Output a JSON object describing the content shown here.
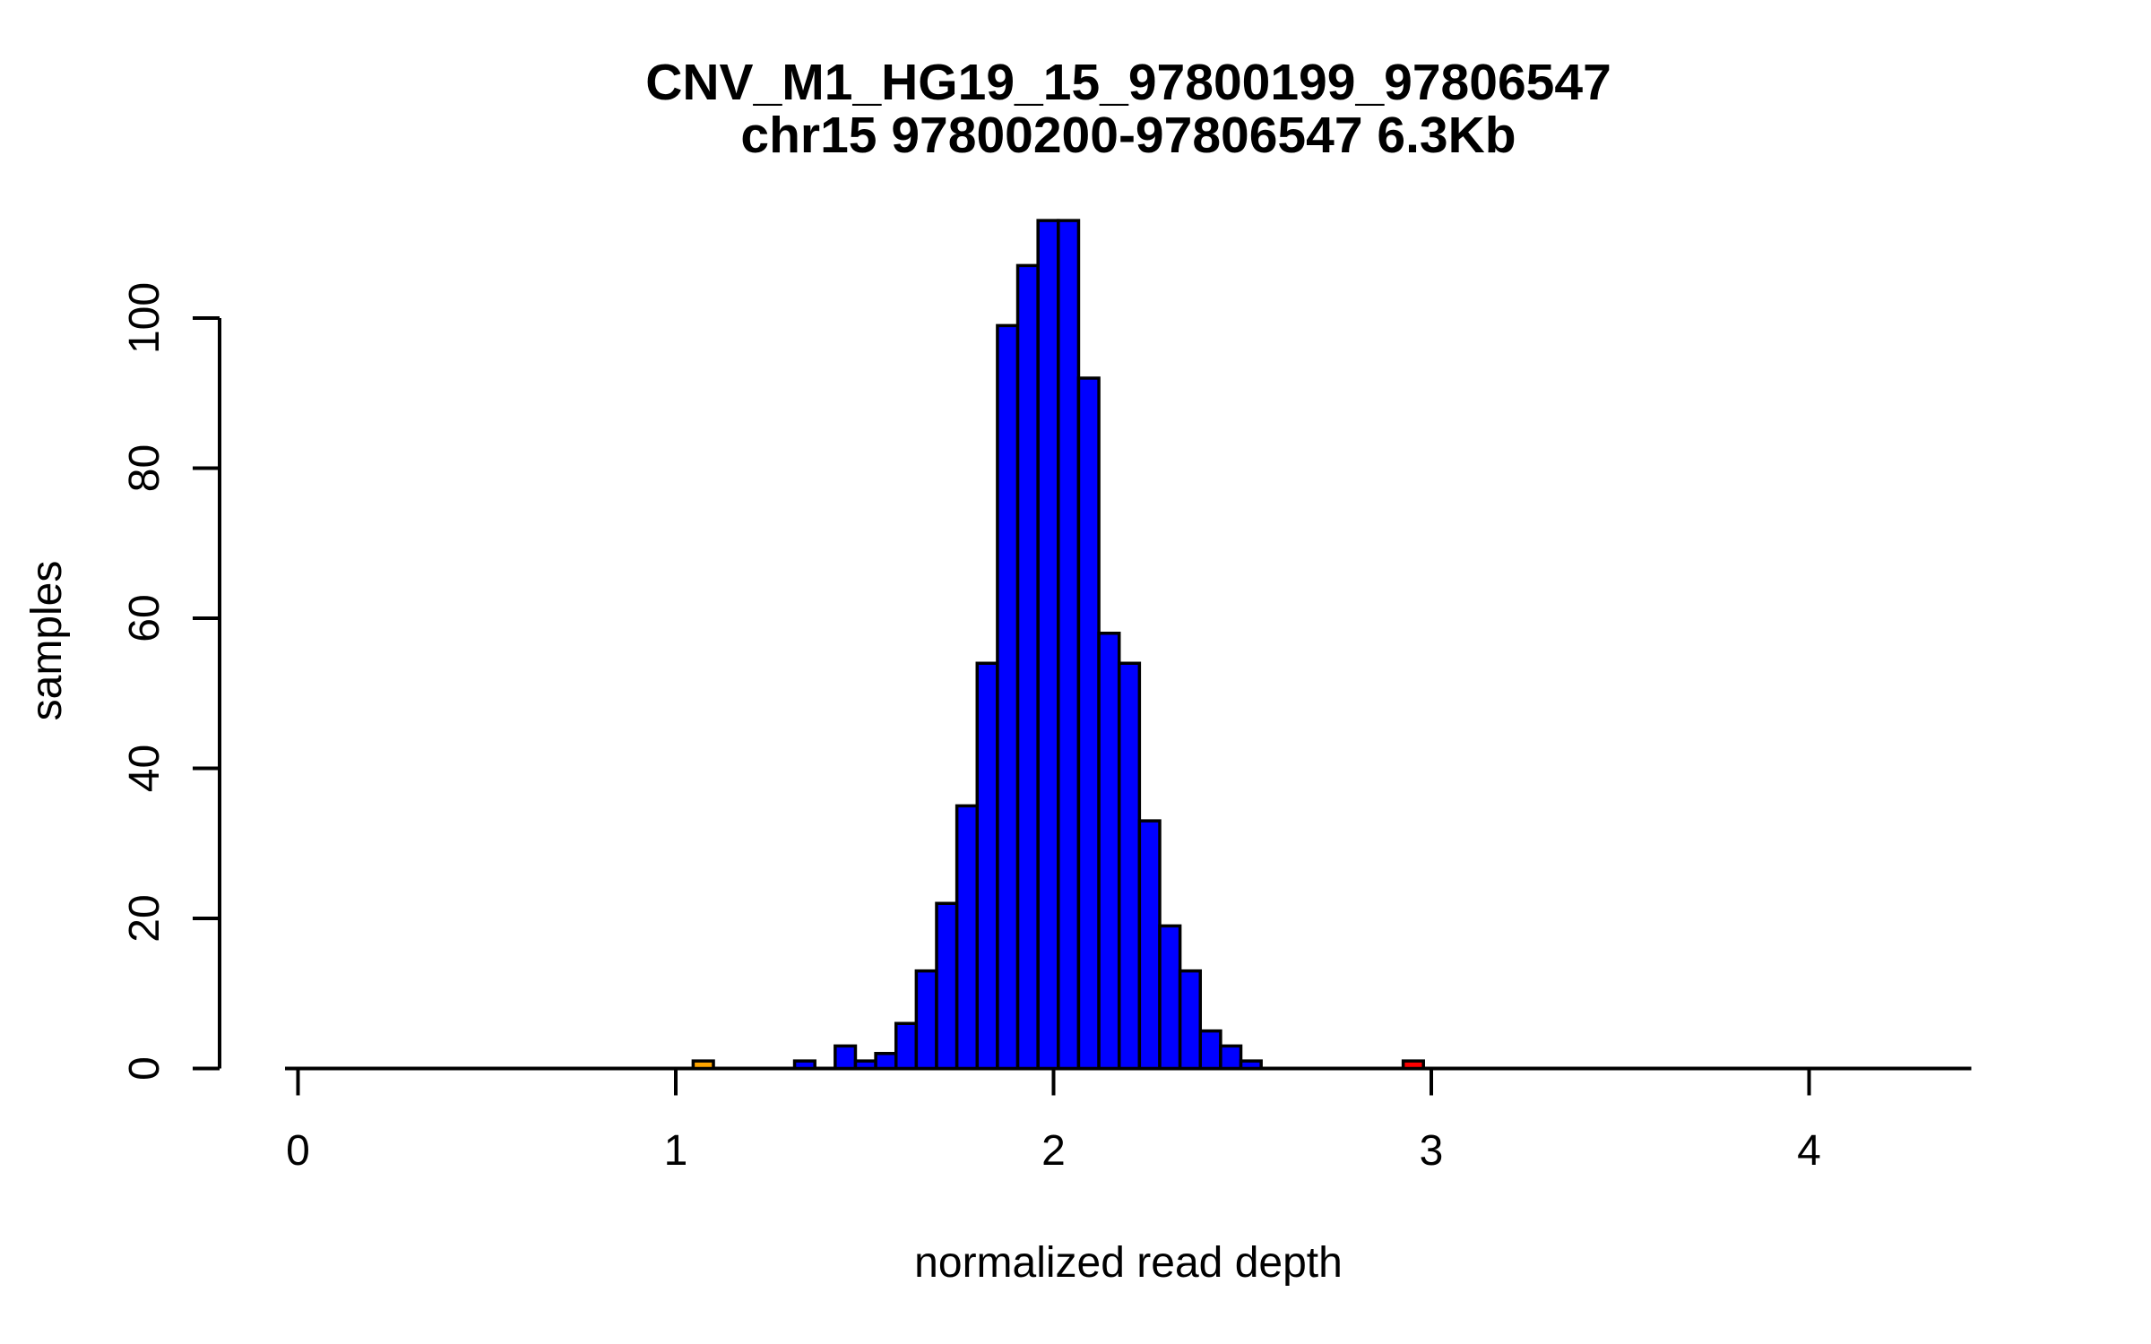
{
  "figure": {
    "title_line1": "CNV_M1_HG19_15_97800199_97806547",
    "title_line2": "chr15 97800200-97806547 6.3Kb",
    "x_axis_label": "normalized read depth",
    "y_axis_label": "samples"
  },
  "colors": {
    "background": "#FFFFFF",
    "axis": "#000000",
    "text": "#000000",
    "bar_default_fill": "#0000FF",
    "bar_border": "#000000",
    "low_outlier_fill": "#FFA500",
    "high_outlier_fill": "#FF0000"
  },
  "chart_data": {
    "type": "bar",
    "subtype": "histogram",
    "title": "CNV_M1_HG19_15_97800199_97806547",
    "subtitle": "chr15 97800200-97806547 6.3Kb",
    "xlabel": "normalized read depth",
    "ylabel": "samples",
    "x_ticks": [
      0,
      1,
      2,
      3,
      4
    ],
    "y_ticks": [
      0,
      20,
      40,
      60,
      80,
      100
    ],
    "x_axis_span": [
      -0.034,
      4.43
    ],
    "ylim": [
      0,
      113
    ],
    "grid": false,
    "legend": false,
    "bins": {
      "start": 1.046,
      "width": 0.0537,
      "counts": [
        1,
        0,
        0,
        0,
        0,
        1,
        0,
        3,
        1,
        2,
        6,
        13,
        22,
        35,
        54,
        99,
        107,
        113,
        113,
        92,
        58,
        54,
        33,
        19,
        13,
        5,
        3,
        1,
        0,
        0,
        0,
        0,
        0,
        0,
        0,
        1
      ],
      "default_color": "#0000FF",
      "first_bin_color": "#FFA500",
      "last_bin_color": "#FF0000"
    }
  }
}
